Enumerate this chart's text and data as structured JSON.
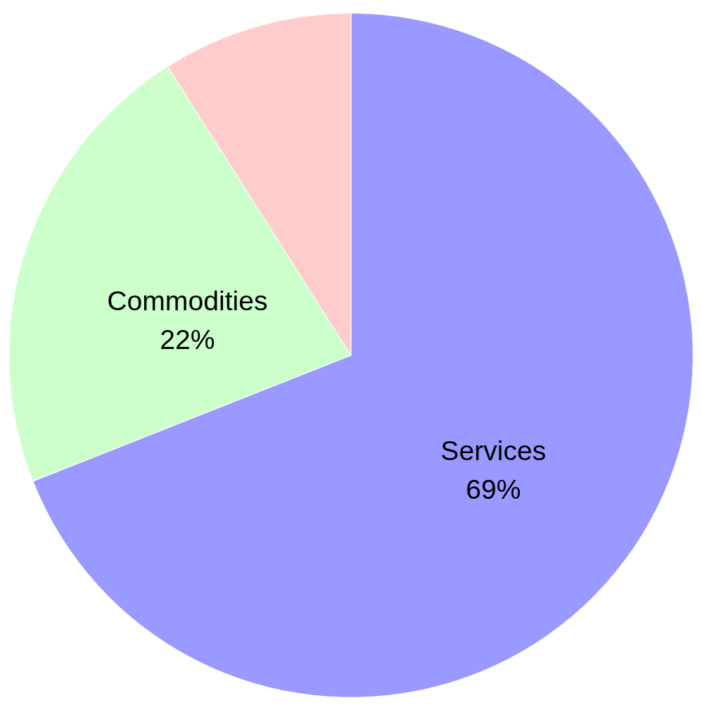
{
  "chart_data": {
    "type": "pie",
    "categories": [
      "Services",
      "Commodities",
      null
    ],
    "values": [
      69,
      22,
      9
    ],
    "colors": [
      "#9999ff",
      "#ccffcc",
      "#ffcccc"
    ],
    "value_labels": [
      "69%",
      "22%",
      null
    ]
  }
}
